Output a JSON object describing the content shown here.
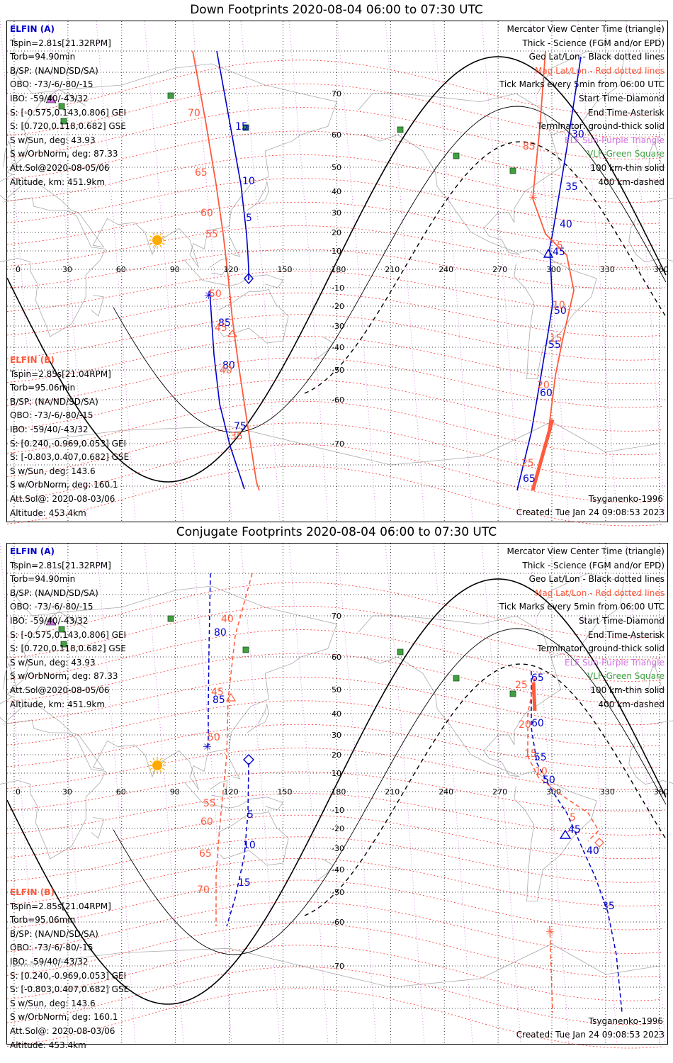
{
  "panels": [
    {
      "title": "Down Footprints 2020-08-04 06:00 to 07:30 UTC",
      "elfin_a": {
        "header": "ELFIN (A)",
        "lines": [
          "Tspin=2.81s[21.32RPM]",
          "Torb=94.90min",
          "B/SP: (NA/ND/SD/SA)",
          "OBO: -73/-6/-80/-15",
          "IBO: -59/40/-43/32",
          "S: [-0.575,0.143,0.806] GEI",
          "S: [0.720,0.118,0.682] GSE",
          "S w/Sun, deg: 43.93",
          "S w/OrbNorm, deg: 87.33",
          "Att.Sol@2020-08-05/06",
          "Altitude, km: 451.9km"
        ]
      },
      "elfin_b": {
        "header": "ELFIN (B)",
        "lines": [
          "Tspin=2.85s[21.04RPM]",
          "Torb=95.06min",
          "B/SP: (NA/ND/SD/SA)",
          "OBO: -73/-6/-80/-15",
          "IBO: -59/40/-43/32",
          "S: [0.240,-0.969,0.053] GEI",
          "S: [-0.803,0.407,0.682] GSE",
          "S w/Sun, deg: 143.6",
          "S w/OrbNorm, deg: 160.1",
          "Att.Sol@: 2020-08-03/06",
          "Altitude: 453.4km"
        ]
      },
      "model": "Tsyganenko-1996",
      "created": "Created: Tue Jan 24 09:08:53 2023"
    },
    {
      "title": "Conjugate Footprints 2020-08-04 06:00 to 07:30 UTC",
      "elfin_a": {
        "header": "ELFIN (A)",
        "lines": [
          "Tspin=2.81s[21.32RPM]",
          "Torb=94.90min",
          "B/SP: (NA/ND/SD/SA)",
          "OBO: -73/-6/-80/-15",
          "IBO: -59/40/-43/32",
          "S: [-0.575,0.143,0.806] GEI",
          "S: [0.720,0.118,0.682] GSE",
          "S w/Sun, deg: 43.93",
          "S w/OrbNorm, deg: 87.33",
          "Att.Sol@2020-08-05/06",
          "Altitude, km: 451.9km"
        ]
      },
      "elfin_b": {
        "header": "ELFIN (B)",
        "lines": [
          "Tspin=2.85s[21.04RPM]",
          "Torb=95.06min",
          "B/SP: (NA/ND/SD/SA)",
          "OBO: -73/-6/-80/-15",
          "IBO: -59/40/-43/32",
          "S: [0.240,-0.969,0.053] GEI",
          "S: [-0.803,0.407,0.682] GSE",
          "S w/Sun, deg: 143.6",
          "S w/OrbNorm, deg: 160.1",
          "Att.Sol@: 2020-08-03/06",
          "Altitude: 453.4km"
        ]
      },
      "model": "Tsyganenko-1996",
      "created": "Created: Tue Jan 24 09:08:53 2023"
    }
  ],
  "legend": [
    {
      "text": "Mercator View Center Time (triangle)",
      "color": "#000000"
    },
    {
      "text": "Thick - Science (FGM and/or EPD)",
      "color": "#000000"
    },
    {
      "text": "Geo Lat/Lon - Black dotted lines",
      "color": "#000000"
    },
    {
      "text": "Mag Lat/Lon - Red dotted lines",
      "color": "#ff3030"
    },
    {
      "text": "Tick Marks every 5min from 06:00 UTC",
      "color": "#000000"
    },
    {
      "text": "Start Time-Diamond",
      "color": "#000000"
    },
    {
      "text": "End Time-Asterisk",
      "color": "#000000"
    },
    {
      "text": "Terminator: ground-thick solid",
      "color": "#000000"
    },
    {
      "text": "ELF Sun-Purple Triangle",
      "color": "#d070e0"
    },
    {
      "text": "VLF-Green Square",
      "color": "#40a040"
    },
    {
      "text": "100 km-thin solid",
      "color": "#000000"
    },
    {
      "text": "400 km-dashed",
      "color": "#000000"
    }
  ],
  "axis": {
    "lon_ticks": [
      "0",
      "30",
      "60",
      "90",
      "120",
      "150",
      "180",
      "210",
      "240",
      "270",
      "300",
      "330",
      "360"
    ],
    "lat_ticks": [
      "70",
      "60",
      "50",
      "40",
      "30",
      "20",
      "10",
      "-10",
      "-20",
      "-30",
      "-40",
      "-50",
      "-60",
      "-70"
    ]
  },
  "colors": {
    "elfin_a": "#0000cc",
    "elfin_b": "#ff5a3c",
    "geo_grid": "#000000",
    "mag_grid": "#ff3030",
    "coast": "#aaaaaa",
    "sun": "#ffaa00",
    "vlf": "#40a040"
  },
  "tracks": {
    "down_a_labels": [
      "15",
      "10",
      "5",
      "85",
      "80",
      "75",
      "30",
      "35",
      "40",
      "45",
      "50",
      "55",
      "60",
      "65"
    ],
    "down_b_labels": [
      "70",
      "65",
      "60",
      "55",
      "50",
      "45",
      "40",
      "35",
      "85",
      "5",
      "10",
      "15",
      "20",
      "25"
    ],
    "conj_a_labels": [
      "80",
      "85",
      "5",
      "10",
      "15",
      "65",
      "60",
      "55",
      "50",
      "45",
      "40",
      "35"
    ],
    "conj_b_labels": [
      "40",
      "45",
      "50",
      "55",
      "60",
      "65",
      "70",
      "25",
      "20",
      "15",
      "10",
      "5"
    ]
  }
}
